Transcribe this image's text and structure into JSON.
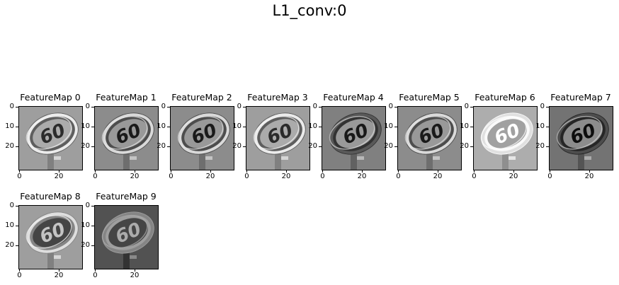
{
  "chart_data": {
    "type": "image_grid",
    "title": "L1_conv:0",
    "panels": [
      {
        "title": "FeatureMap 0",
        "style": "emboss",
        "tone": 0.62
      },
      {
        "title": "FeatureMap 1",
        "style": "emboss",
        "tone": 0.55
      },
      {
        "title": "FeatureMap 2",
        "style": "emboss",
        "tone": 0.55
      },
      {
        "title": "FeatureMap 3",
        "style": "emboss",
        "tone": 0.62
      },
      {
        "title": "FeatureMap 4",
        "style": "dark-ring",
        "tone": 0.5
      },
      {
        "title": "FeatureMap 5",
        "style": "emboss",
        "tone": 0.55
      },
      {
        "title": "FeatureMap 6",
        "style": "light-ring",
        "tone": 0.68
      },
      {
        "title": "FeatureMap 7",
        "style": "dark-ring",
        "tone": 0.45
      },
      {
        "title": "FeatureMap 8",
        "style": "dark-fill",
        "tone": 0.62
      },
      {
        "title": "FeatureMap 9",
        "style": "light-ring",
        "tone": 0.32
      }
    ],
    "image_size": 32,
    "xticks": [
      0,
      20
    ],
    "yticks": [
      0,
      10,
      20
    ],
    "sign_text": "60",
    "colormap": "gray"
  }
}
